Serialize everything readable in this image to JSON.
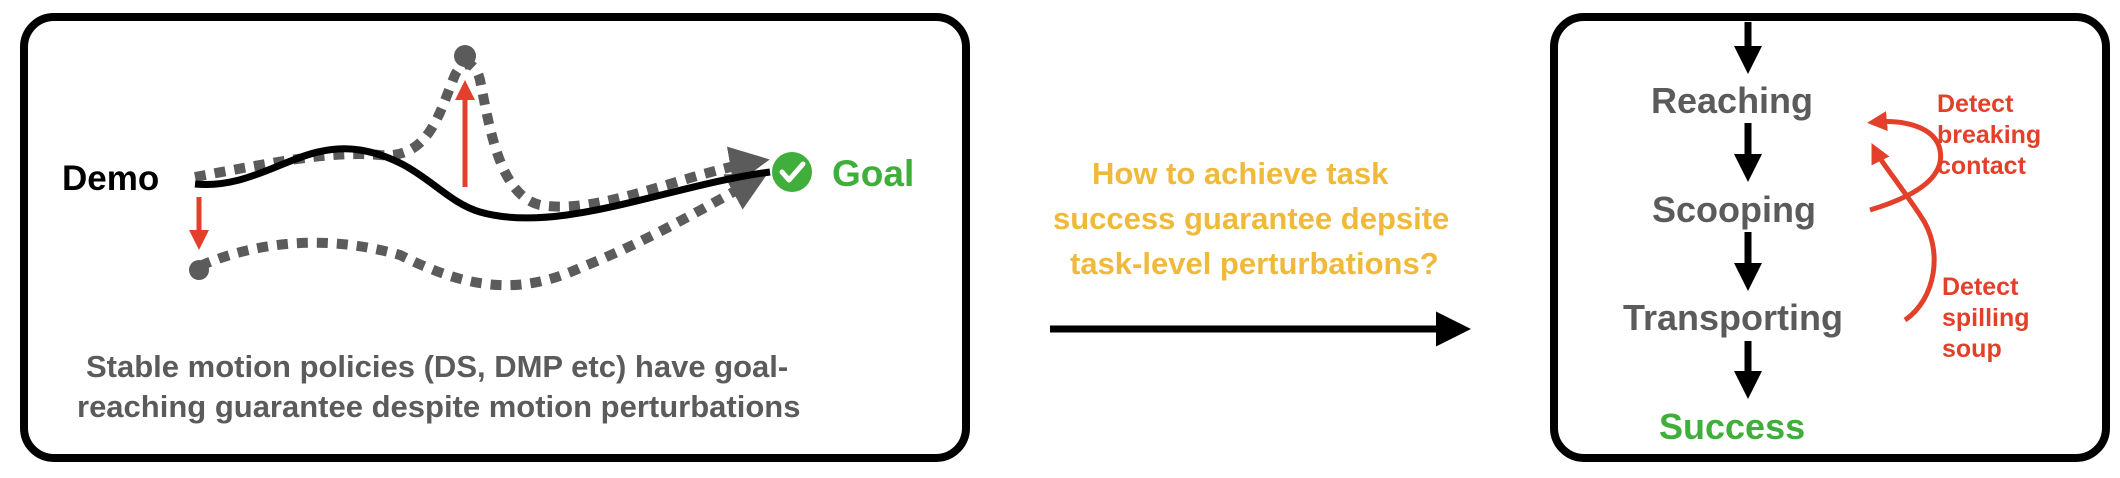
{
  "left_panel": {
    "demo_label": "Demo",
    "goal_label": "Goal",
    "caption_line1": "Stable motion policies (DS, DMP etc) have goal-",
    "caption_line2": "reaching guarantee despite motion perturbations"
  },
  "middle": {
    "question_line1": "How to achieve task",
    "question_line2": "success guarantee depsite",
    "question_line3": "task-level perturbations?"
  },
  "right_panel": {
    "stages": [
      "Reaching",
      "Scooping",
      "Transporting"
    ],
    "success_label": "Success",
    "detect_contact": [
      "Detect",
      "breaking",
      "contact"
    ],
    "detect_spill": [
      "Detect",
      "spilling",
      "soup"
    ]
  },
  "colors": {
    "demo_line": "#000000",
    "perturbed_path": "#5b5b5b",
    "perturbation_arrow": "#e2402a",
    "goal": "#3fae3a",
    "question": "#f0b93a",
    "detect": "#e2402a"
  }
}
